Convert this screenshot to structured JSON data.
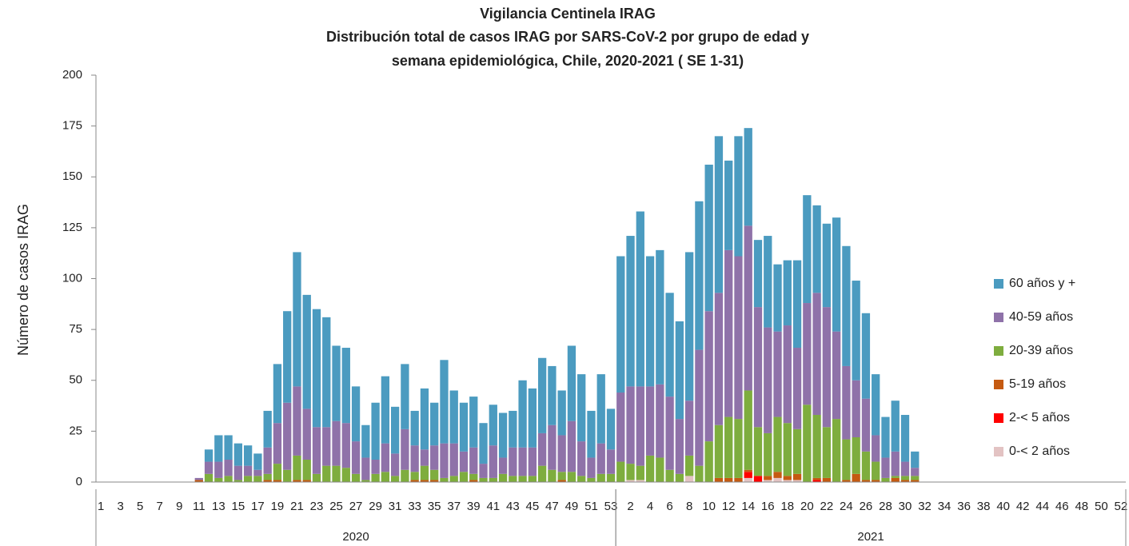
{
  "chart_data": {
    "type": "stacked_bar",
    "title": "Vigilancia Centinela IRAG",
    "subtitle": [
      "Distribución total de casos IRAG por SARS-CoV-2 por grupo de edad y",
      "semana epidemiológica,  Chile, 2020-2021 ( SE 1-31)"
    ],
    "y_label": "Número de casos IRAG",
    "ylim": [
      0,
      200
    ],
    "yticks": [
      0,
      25,
      50,
      75,
      100,
      125,
      150,
      175,
      200
    ],
    "grid": false,
    "legend": "right",
    "groups": [
      {
        "label": "2020",
        "categories": [
          "1",
          null,
          "3",
          null,
          "5",
          null,
          "7",
          null,
          "9",
          null,
          "11",
          null,
          "13",
          null,
          "15",
          null,
          "17",
          null,
          "19",
          null,
          "21",
          null,
          "23",
          null,
          "25",
          null,
          "27",
          null,
          "29",
          null,
          "31",
          null,
          "33",
          null,
          "35",
          null,
          "37",
          null,
          "39",
          null,
          "41",
          null,
          "43",
          null,
          "45",
          null,
          "47",
          null,
          "49",
          null,
          "51",
          null,
          "53"
        ]
      },
      {
        "label": "2021",
        "categories": [
          null,
          "2",
          null,
          "4",
          null,
          "6",
          null,
          "8",
          null,
          "10",
          null,
          "12",
          null,
          "14",
          null,
          "16",
          null,
          "18",
          null,
          "20",
          null,
          "22",
          null,
          "24",
          null,
          "26",
          null,
          "28",
          null,
          "30",
          null,
          "32",
          null,
          "34",
          null,
          "36",
          null,
          "38",
          null,
          "40",
          null,
          "42",
          null,
          "44",
          null,
          "46",
          null,
          "48",
          null,
          "50",
          null,
          "52"
        ]
      }
    ],
    "series": [
      {
        "name": "0-< 2 años",
        "color": "#e3c3c3",
        "values": [
          0,
          0,
          0,
          0,
          0,
          0,
          0,
          0,
          0,
          0,
          0,
          0,
          0,
          0,
          0,
          0,
          0,
          0,
          0,
          0,
          0,
          0,
          0,
          0,
          0,
          0,
          0,
          0,
          0,
          0,
          0,
          0,
          0,
          0,
          0,
          0,
          0,
          0,
          0,
          0,
          0,
          0,
          0,
          0,
          0,
          0,
          0,
          0,
          0,
          0,
          0,
          0,
          0,
          0,
          1,
          1,
          0,
          0,
          0,
          0,
          3,
          0,
          0,
          0,
          0,
          0,
          2,
          0,
          1,
          2,
          1,
          1,
          0,
          0,
          0,
          0,
          0,
          0,
          0,
          0,
          0,
          0,
          0,
          0,
          0,
          0,
          0,
          0,
          0,
          0,
          0,
          0,
          0,
          0,
          0,
          0,
          0,
          0,
          0,
          0,
          0,
          0,
          0,
          0,
          0,
          0,
          0,
          0
        ]
      },
      {
        "name": "2-< 5 años",
        "color": "#ff0000",
        "values": [
          0,
          0,
          0,
          0,
          0,
          0,
          0,
          0,
          0,
          0,
          0,
          0,
          0,
          0,
          0,
          0,
          0,
          0,
          0,
          0,
          0,
          0,
          0,
          0,
          0,
          0,
          0,
          0,
          0,
          0,
          0,
          0,
          0,
          0,
          0,
          0,
          0,
          0,
          0,
          0,
          0,
          0,
          0,
          0,
          0,
          0,
          0,
          0,
          0,
          0,
          0,
          0,
          0,
          0,
          0,
          0,
          0,
          0,
          0,
          0,
          0,
          0,
          0,
          0,
          0,
          0,
          3,
          3,
          0,
          0,
          0,
          0,
          0,
          1,
          0,
          0,
          0,
          0,
          0,
          0,
          0,
          0,
          0,
          0,
          0,
          0,
          0,
          0,
          0,
          0,
          0,
          0,
          0,
          0,
          0,
          0,
          0,
          0,
          0,
          0,
          0,
          0,
          0,
          0,
          0,
          0,
          0,
          0
        ]
      },
      {
        "name": "5-19 años",
        "color": "#c55a11",
        "values": [
          0,
          0,
          0,
          0,
          0,
          0,
          0,
          0,
          0,
          0,
          1,
          0,
          0,
          0,
          0,
          0,
          0,
          1,
          1,
          0,
          1,
          1,
          0,
          0,
          0,
          0,
          0,
          0,
          0,
          0,
          0,
          0,
          1,
          1,
          1,
          0,
          0,
          0,
          1,
          0,
          0,
          0,
          0,
          0,
          0,
          0,
          0,
          1,
          0,
          0,
          0,
          0,
          0,
          0,
          0,
          0,
          0,
          0,
          0,
          0,
          0,
          0,
          0,
          2,
          2,
          2,
          1,
          0,
          2,
          3,
          2,
          3,
          0,
          1,
          2,
          0,
          1,
          4,
          1,
          1,
          0,
          2,
          1,
          1,
          0,
          0,
          0,
          0,
          0,
          0,
          0,
          0,
          0,
          0,
          0,
          0,
          0,
          0,
          0,
          0,
          0,
          0,
          0,
          0,
          0
        ]
      },
      {
        "name": "20-39 años",
        "color": "#7ead3e",
        "values": [
          0,
          0,
          0,
          0,
          0,
          0,
          0,
          0,
          0,
          0,
          0,
          4,
          2,
          3,
          1,
          3,
          3,
          3,
          8,
          6,
          12,
          10,
          4,
          8,
          8,
          7,
          4,
          1,
          4,
          5,
          3,
          6,
          4,
          7,
          5,
          2,
          3,
          5,
          3,
          2,
          2,
          4,
          3,
          3,
          3,
          8,
          6,
          4,
          5,
          3,
          2,
          4,
          4,
          10,
          8,
          7,
          13,
          12,
          6,
          4,
          10,
          8,
          20,
          26,
          30,
          29,
          39,
          24,
          21,
          27,
          26,
          22,
          38,
          31,
          25,
          31,
          20,
          18,
          14,
          9,
          2,
          1,
          2,
          2,
          0,
          0,
          0,
          0,
          0,
          0,
          0,
          0,
          0,
          0,
          0,
          0,
          0,
          0,
          0,
          0,
          0,
          0,
          0,
          0,
          0
        ]
      },
      {
        "name": "40-59 años",
        "color": "#8f72a9",
        "values": [
          0,
          0,
          0,
          0,
          0,
          0,
          0,
          0,
          0,
          0,
          1,
          6,
          8,
          8,
          7,
          5,
          3,
          13,
          20,
          33,
          34,
          25,
          23,
          19,
          22,
          22,
          16,
          11,
          7,
          14,
          11,
          20,
          13,
          8,
          12,
          17,
          16,
          10,
          13,
          7,
          16,
          8,
          14,
          14,
          14,
          16,
          22,
          18,
          25,
          17,
          10,
          15,
          12,
          34,
          38,
          39,
          34,
          36,
          36,
          27,
          27,
          57,
          64,
          65,
          82,
          80,
          81,
          59,
          52,
          42,
          48,
          40,
          50,
          60,
          59,
          43,
          36,
          28,
          26,
          13,
          10,
          12,
          7,
          4,
          0,
          0,
          0,
          0,
          0,
          0,
          0,
          0,
          0,
          0,
          0,
          0,
          0,
          0,
          0,
          0,
          0,
          0,
          0,
          0,
          0
        ]
      },
      {
        "name": "60 años y +",
        "color": "#4b9bc0",
        "values": [
          0,
          0,
          0,
          0,
          0,
          0,
          0,
          0,
          0,
          0,
          0,
          6,
          13,
          12,
          11,
          10,
          8,
          18,
          29,
          45,
          66,
          56,
          58,
          54,
          37,
          37,
          27,
          16,
          28,
          33,
          23,
          32,
          17,
          30,
          21,
          41,
          26,
          24,
          25,
          20,
          20,
          22,
          18,
          33,
          29,
          37,
          29,
          22,
          37,
          33,
          23,
          34,
          20,
          67,
          74,
          86,
          64,
          66,
          51,
          48,
          73,
          73,
          72,
          77,
          44,
          59,
          48,
          33,
          45,
          33,
          32,
          43,
          53,
          43,
          41,
          56,
          59,
          49,
          42,
          30,
          20,
          25,
          23,
          8,
          0,
          0,
          0,
          0,
          0,
          0,
          0,
          0,
          0,
          0,
          0,
          0,
          0,
          0,
          0,
          0,
          0,
          0,
          0,
          0,
          0
        ]
      }
    ]
  }
}
